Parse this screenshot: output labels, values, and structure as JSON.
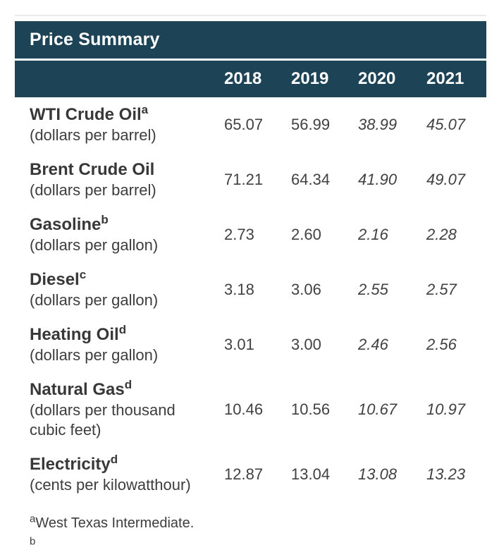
{
  "colors": {
    "header_bg": "#1d4356",
    "header_text": "#ffffff",
    "body_text": "#3d3d3d"
  },
  "chart_data": {
    "type": "table",
    "title": "Price Summary",
    "columns": [
      "2018",
      "2019",
      "2020",
      "2021"
    ],
    "italic_value_columns": [
      "2020",
      "2021"
    ],
    "rows": [
      {
        "name": "WTI Crude Oil",
        "marker": "a",
        "unit": "(dollars per barrel)",
        "values": [
          "65.07",
          "56.99",
          "38.99",
          "45.07"
        ]
      },
      {
        "name": "Brent Crude Oil",
        "marker": "",
        "unit": "(dollars per barrel)",
        "values": [
          "71.21",
          "64.34",
          "41.90",
          "49.07"
        ]
      },
      {
        "name": "Gasoline",
        "marker": "b",
        "unit": "(dollars per gallon)",
        "values": [
          "2.73",
          "2.60",
          "2.16",
          "2.28"
        ]
      },
      {
        "name": "Diesel",
        "marker": "c",
        "unit": "(dollars per gallon)",
        "values": [
          "3.18",
          "3.06",
          "2.55",
          "2.57"
        ]
      },
      {
        "name": "Heating Oil",
        "marker": "d",
        "unit": "(dollars per gallon)",
        "values": [
          "3.01",
          "3.00",
          "2.46",
          "2.56"
        ]
      },
      {
        "name": "Natural Gas",
        "marker": "d",
        "unit": "(dollars per thousand cubic feet)",
        "values": [
          "10.46",
          "10.56",
          "10.67",
          "10.97"
        ]
      },
      {
        "name": "Electricity",
        "marker": "d",
        "unit": "(cents per kilowatthour)",
        "values": [
          "12.87",
          "13.04",
          "13.08",
          "13.23"
        ]
      }
    ],
    "footnotes": [
      {
        "marker": "a",
        "text": "West Texas Intermediate."
      },
      {
        "marker": "b",
        "text": ""
      }
    ]
  }
}
